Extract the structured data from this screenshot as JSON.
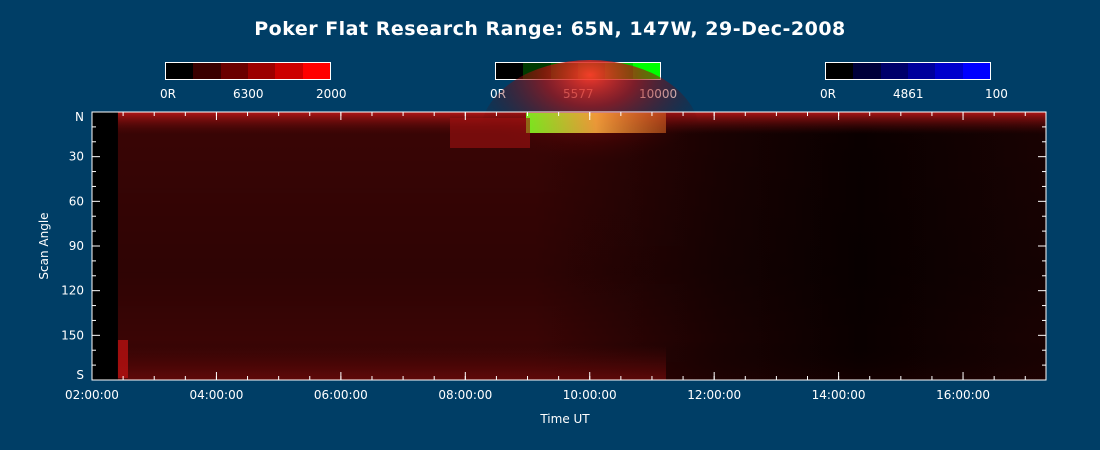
{
  "title": "Poker Flat Research Range: 65N, 147W, 29-Dec-2008",
  "colorbars": [
    {
      "channel": "6300",
      "min_label": "0R",
      "mid_label": "6300",
      "max_label": "2000",
      "colors": [
        "#000000",
        "#3a0000",
        "#6a0000",
        "#9c0000",
        "#cc0000",
        "#ff0000"
      ]
    },
    {
      "channel": "5577",
      "min_label": "0R",
      "mid_label": "5577",
      "max_label": "10000",
      "colors": [
        "#000000",
        "#003a00",
        "#006a00",
        "#009c00",
        "#00cc00",
        "#00ff00"
      ]
    },
    {
      "channel": "4861",
      "min_label": "0R",
      "mid_label": "4861",
      "max_label": "100",
      "colors": [
        "#000000",
        "#00003a",
        "#00006a",
        "#00009c",
        "#0000cc",
        "#0000ff"
      ]
    }
  ],
  "chart_data": {
    "type": "heatmap",
    "xlabel": "Time UT",
    "ylabel": "Scan Angle",
    "x_ticks": [
      "02:00:00",
      "04:00:00",
      "06:00:00",
      "08:00:00",
      "10:00:00",
      "12:00:00",
      "14:00:00",
      "16:00:00"
    ],
    "x_range": [
      "02:00:00",
      "17:20:00"
    ],
    "y_ticks": [
      "N",
      "30",
      "60",
      "90",
      "120",
      "150",
      "S"
    ],
    "y_range": [
      0,
      180
    ],
    "data_start": "02:25:00",
    "channels": [
      "6300",
      "5577",
      "4861"
    ]
  }
}
